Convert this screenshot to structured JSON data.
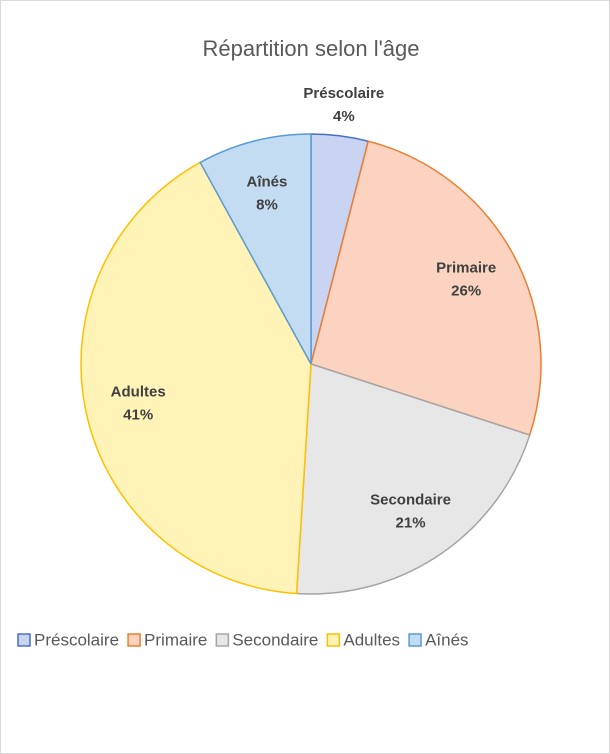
{
  "chart_data": {
    "type": "pie",
    "title": "Répartition selon l'âge",
    "categories": [
      "Préscolaire",
      "Primaire",
      "Secondaire",
      "Adultes",
      "Aînés"
    ],
    "values": [
      4,
      26,
      21,
      41,
      8
    ],
    "value_labels": [
      "4%",
      "26%",
      "21%",
      "41%",
      "8%"
    ],
    "colors": [
      "#c9d3f2",
      "#fbd3c0",
      "#e7e7e7",
      "#fff3b8",
      "#c3dcf2"
    ],
    "border_colors": [
      "#4472c4",
      "#ed7d31",
      "#a5a5a5",
      "#ffc000",
      "#5b9bd5"
    ],
    "legend": "bottom"
  }
}
